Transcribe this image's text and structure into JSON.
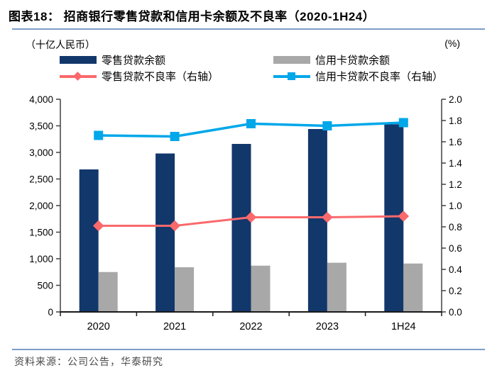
{
  "figure": {
    "title": "图表18：  招商银行零售贷款和信用卡余额及不良率（2020-1H24）"
  },
  "axes": {
    "left_unit": "（十亿人民币）",
    "right_unit": "(%)",
    "left_ticks": [
      "0",
      "500",
      "1,000",
      "1,500",
      "2,000",
      "2,500",
      "3,000",
      "3,500",
      "4,000"
    ],
    "right_ticks": [
      "0.0",
      "0.2",
      "0.4",
      "0.6",
      "0.8",
      "1.0",
      "1.2",
      "1.4",
      "1.6",
      "1.8",
      "2.0"
    ]
  },
  "legend": {
    "retail_balance": "零售贷款余额",
    "card_balance": "信用卡贷款余额",
    "retail_npl": "零售贷款不良率（右轴）",
    "card_npl": "信用卡贷款不良率（右轴）"
  },
  "colors": {
    "retail_bar": "#12376B",
    "card_bar": "#A8A8A8",
    "retail_line": "#FA696C",
    "card_line": "#00A7E9",
    "axis": "#404040",
    "rule": "#7E9CC9",
    "tick_text": "#000000"
  },
  "chart_data": {
    "type": "bar",
    "title": "招商银行零售贷款和信用卡余额及不良率（2020-1H24）",
    "categories": [
      "2020",
      "2021",
      "2022",
      "2023",
      "1H24"
    ],
    "series": [
      {
        "name": "零售贷款余额",
        "type": "bar",
        "axis": "left",
        "values": [
          2680,
          2980,
          3160,
          3440,
          3530
        ]
      },
      {
        "name": "信用卡贷款余额",
        "type": "bar",
        "axis": "left",
        "values": [
          750,
          840,
          870,
          925,
          910
        ]
      },
      {
        "name": "零售贷款不良率（右轴）",
        "type": "line",
        "marker": "diamond",
        "axis": "right",
        "values": [
          0.81,
          0.81,
          0.89,
          0.89,
          0.9
        ]
      },
      {
        "name": "信用卡贷款不良率（右轴）",
        "type": "line",
        "marker": "square",
        "axis": "right",
        "values": [
          1.66,
          1.65,
          1.77,
          1.75,
          1.78
        ]
      }
    ],
    "left_axis": {
      "min": 0,
      "max": 4000,
      "step": 500,
      "unit": "十亿人民币"
    },
    "right_axis": {
      "min": 0.0,
      "max": 2.0,
      "step": 0.2,
      "unit": "%"
    },
    "grid": false,
    "legend_position": "top"
  },
  "footer": {
    "source": "资料来源：公司公告，华泰研究"
  }
}
